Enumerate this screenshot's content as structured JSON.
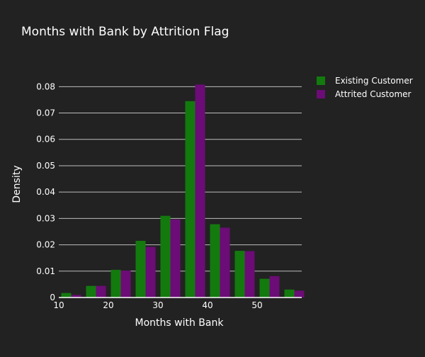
{
  "chart_data": {
    "type": "bar",
    "title": "Months with Bank by Attrition Flag",
    "xlabel": "Months with Bank",
    "ylabel": "Density",
    "xlim": [
      10,
      59
    ],
    "ylim": [
      0,
      0.086
    ],
    "x_ticks": [
      10,
      20,
      30,
      40,
      50
    ],
    "y_ticks": [
      0,
      0.01,
      0.02,
      0.03,
      0.04,
      0.05,
      0.06,
      0.07,
      0.08
    ],
    "y_tick_labels": [
      "0",
      "0.01",
      "0.02",
      "0.03",
      "0.04",
      "0.05",
      "0.06",
      "0.07",
      "0.08"
    ],
    "bin_width": 5,
    "bin_starts": [
      10,
      15,
      20,
      25,
      30,
      35,
      40,
      45,
      50,
      55
    ],
    "grid": true,
    "legend_position": "top-right",
    "series": [
      {
        "name": "Existing Customer",
        "color": "#137a0e",
        "values": [
          0.0017,
          0.0044,
          0.0105,
          0.0215,
          0.031,
          0.0745,
          0.0278,
          0.0177,
          0.0071,
          0.003
        ]
      },
      {
        "name": "Attrited Customer",
        "color": "#6c0c76",
        "values": [
          0.001,
          0.0044,
          0.0102,
          0.0192,
          0.0296,
          0.0808,
          0.0265,
          0.0176,
          0.0081,
          0.0026
        ]
      }
    ]
  }
}
